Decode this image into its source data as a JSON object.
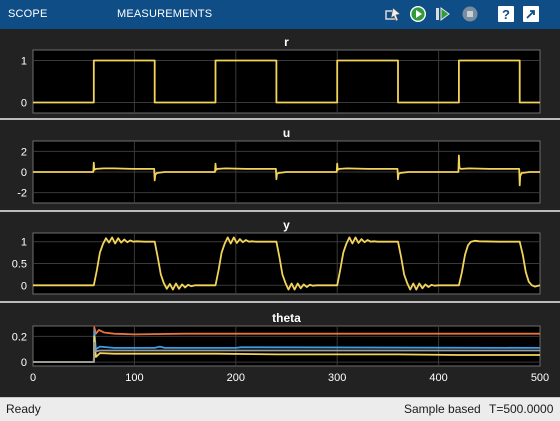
{
  "toolstrip": {
    "tabs": [
      {
        "label": "SCOPE"
      },
      {
        "label": "MEASUREMENTS"
      }
    ],
    "buttons": [
      {
        "icon": "highlight-block-icon"
      },
      {
        "icon": "run-icon"
      },
      {
        "icon": "step-forward-icon"
      },
      {
        "icon": "stop-icon"
      },
      {
        "icon": "help-icon"
      },
      {
        "icon": "undock-icon"
      }
    ],
    "accent": "#0f4d86"
  },
  "chart_data": [
    {
      "type": "line",
      "title": "r",
      "ylim": [
        -0.25,
        1.25
      ],
      "yticks": [
        0,
        1
      ],
      "xlim": [
        0,
        500
      ],
      "series": [
        {
          "color": "#f2d45a",
          "x": [
            0,
            60,
            60,
            120,
            120,
            180,
            180,
            240,
            240,
            300,
            300,
            360,
            360,
            420,
            420,
            480,
            480,
            500
          ],
          "y": [
            0,
            0,
            1,
            1,
            0,
            0,
            1,
            1,
            0,
            0,
            1,
            1,
            0,
            0,
            1,
            1,
            0,
            0
          ]
        }
      ]
    },
    {
      "type": "line",
      "title": "u",
      "ylim": [
        -3,
        3
      ],
      "yticks": [
        -2,
        0,
        2
      ],
      "xlim": [
        0,
        500
      ],
      "series": [
        {
          "color": "#f2d45a",
          "x": [
            0,
            59.5,
            60,
            60.5,
            62,
            70,
            80,
            100,
            119.5,
            120,
            120.5,
            122,
            130,
            150,
            179.5,
            180,
            180.5,
            182,
            190,
            210,
            239.5,
            240,
            240.5,
            242,
            250,
            270,
            299.5,
            300,
            300.5,
            302,
            310,
            330,
            359.5,
            360,
            360.5,
            362,
            370,
            390,
            419.5,
            420,
            420.5,
            422,
            430,
            450,
            475,
            479.5,
            480,
            480.5,
            482,
            490,
            500
          ],
          "y": [
            0,
            0,
            0.9,
            0.2,
            0.3,
            0.35,
            0.35,
            0.3,
            0.3,
            -0.8,
            -0.3,
            -0.1,
            0,
            0,
            0,
            0.8,
            0.2,
            0.3,
            0.35,
            0.3,
            0.3,
            -0.7,
            -0.2,
            -0.1,
            0,
            0,
            0,
            0.8,
            0.2,
            0.3,
            0.35,
            0.3,
            0.3,
            -0.7,
            -0.2,
            -0.1,
            0,
            0,
            0,
            1.6,
            0.4,
            0.3,
            0.35,
            0.3,
            0.3,
            0.3,
            -1.3,
            -0.4,
            -0.1,
            0,
            0
          ]
        }
      ]
    },
    {
      "type": "line",
      "title": "y",
      "ylim": [
        -0.2,
        1.2
      ],
      "yticks": [
        0,
        0.5,
        1
      ],
      "xlim": [
        0,
        500
      ],
      "series": [
        {
          "color": "#f2d45a",
          "x": [
            0,
            60,
            63,
            66,
            69,
            72,
            75,
            78,
            81,
            84,
            87,
            90,
            93,
            96,
            99,
            102,
            110,
            120,
            123,
            126,
            129,
            132,
            135,
            138,
            141,
            144,
            147,
            150,
            153,
            156,
            160,
            180,
            183,
            186,
            189,
            192,
            195,
            198,
            201,
            204,
            207,
            210,
            213,
            216,
            220,
            240,
            243,
            246,
            249,
            252,
            255,
            258,
            261,
            264,
            267,
            270,
            273,
            276,
            280,
            300,
            303,
            306,
            309,
            312,
            315,
            318,
            321,
            324,
            327,
            330,
            333,
            336,
            340,
            360,
            363,
            366,
            369,
            372,
            375,
            378,
            381,
            384,
            387,
            390,
            393,
            396,
            400,
            420,
            423,
            426,
            429,
            432,
            436,
            440,
            460,
            480,
            483,
            486,
            489,
            492,
            495,
            500
          ],
          "y": [
            0,
            0,
            0.35,
            0.75,
            0.95,
            1.08,
            0.98,
            1.1,
            0.96,
            1.08,
            0.98,
            1.05,
            0.99,
            1.03,
            1.0,
            1.01,
            1.0,
            1.0,
            0.65,
            0.25,
            0.05,
            -0.08,
            0.03,
            -0.1,
            0.04,
            -0.08,
            0.02,
            -0.05,
            0.01,
            -0.02,
            0,
            0,
            0.35,
            0.75,
            0.95,
            1.1,
            0.96,
            1.1,
            0.97,
            1.06,
            0.99,
            1.04,
            1.0,
            1.01,
            1.0,
            1.0,
            0.65,
            0.25,
            0.05,
            -0.1,
            0.04,
            -0.1,
            0.04,
            -0.07,
            0.02,
            -0.04,
            0.01,
            -0.01,
            0,
            0,
            0.35,
            0.75,
            0.95,
            1.1,
            0.96,
            1.1,
            0.97,
            1.06,
            0.99,
            1.04,
            1.0,
            1.01,
            1.0,
            1.0,
            0.65,
            0.25,
            0.05,
            -0.1,
            0.04,
            -0.1,
            0.04,
            -0.07,
            0.02,
            -0.04,
            0.01,
            -0.01,
            0,
            0,
            0.3,
            0.7,
            0.92,
            1.0,
            1.02,
            1.01,
            1.0,
            1.0,
            0.7,
            0.3,
            0.08,
            0,
            -0.03,
            0
          ]
        }
      ]
    },
    {
      "type": "line",
      "title": "theta",
      "ylim": [
        -0.03,
        0.28
      ],
      "yticks": [
        0,
        0.2
      ],
      "xticks": [
        0,
        100,
        200,
        300,
        400,
        500
      ],
      "xlim": [
        0,
        500
      ],
      "series": [
        {
          "color": "#e8743b",
          "x": [
            0,
            60,
            60.5,
            62,
            65,
            70,
            80,
            100,
            150,
            500
          ],
          "y": [
            0,
            0,
            0.27,
            0.22,
            0.25,
            0.23,
            0.22,
            0.215,
            0.22,
            0.22
          ]
        },
        {
          "color": "#3b9ee8",
          "x": [
            0,
            60,
            60.5,
            62,
            66,
            80,
            120,
            125,
            130,
            200,
            205,
            500
          ],
          "y": [
            0,
            0,
            0.24,
            0.1,
            0.12,
            0.11,
            0.11,
            0.12,
            0.11,
            0.11,
            0.115,
            0.11
          ]
        },
        {
          "color": "#f2d45a",
          "x": [
            0,
            60,
            60.5,
            62,
            66,
            80,
            110,
            180,
            240,
            300,
            360,
            420,
            500
          ],
          "y": [
            0,
            0,
            0.2,
            0.04,
            0.07,
            0.065,
            0.065,
            0.065,
            0.06,
            0.06,
            0.06,
            0.055,
            0.055
          ]
        },
        {
          "color": "#9a9a9a",
          "x": [
            0,
            60,
            60.5,
            62,
            66,
            500
          ],
          "y": [
            0,
            0,
            0.15,
            0.085,
            0.09,
            0.09
          ]
        }
      ]
    }
  ],
  "status": {
    "left": "Ready",
    "mode": "Sample based",
    "time": "T=500.0000"
  }
}
